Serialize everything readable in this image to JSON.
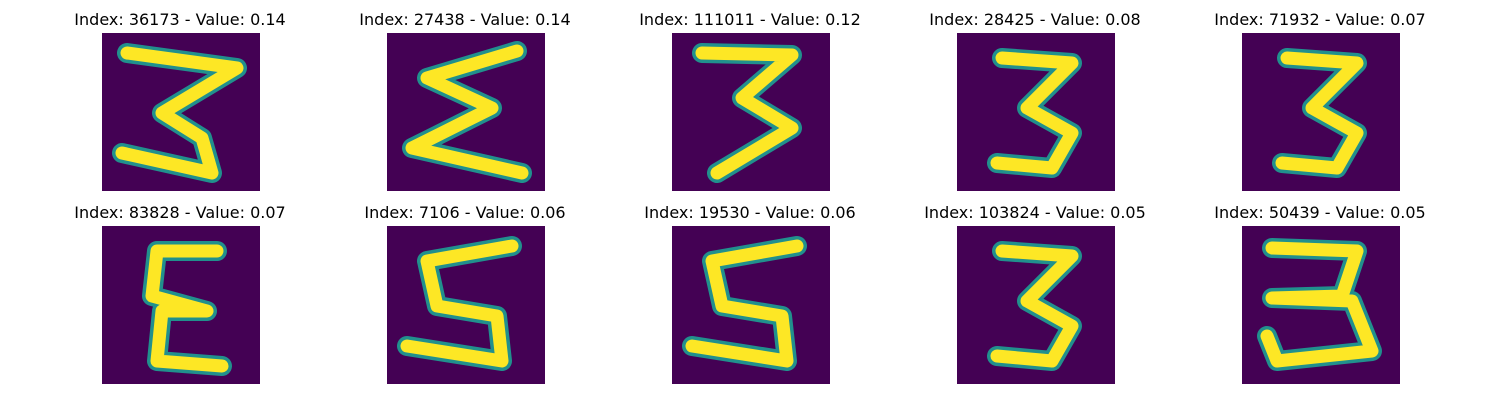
{
  "figure": {
    "background": "#ffffff",
    "colormap": "viridis",
    "colors": {
      "low": "#440154",
      "mid": "#21908d",
      "high": "#fde725"
    },
    "panels": [
      {
        "title": "Index: 36173 - Value: 0.14",
        "index": 36173,
        "value": 0.14,
        "shape": "E-mirror"
      },
      {
        "title": "Index: 27438 - Value: 0.14",
        "index": 27438,
        "value": 0.14,
        "shape": "sigma"
      },
      {
        "title": "Index: 111011 - Value: 0.12",
        "index": 111011,
        "value": 0.12,
        "shape": "three-wide"
      },
      {
        "title": "Index: 28425 - Value: 0.08",
        "index": 28425,
        "value": 0.08,
        "shape": "three"
      },
      {
        "title": "Index: 71932 - Value: 0.07",
        "index": 71932,
        "value": 0.07,
        "shape": "three"
      },
      {
        "title": "Index: 83828 - Value: 0.07",
        "index": 83828,
        "value": 0.07,
        "shape": "epsilon"
      },
      {
        "title": "Index: 7106 - Value: 0.06",
        "index": 7106,
        "value": 0.06,
        "shape": "five"
      },
      {
        "title": "Index: 19530 - Value: 0.06",
        "index": 19530,
        "value": 0.06,
        "shape": "five"
      },
      {
        "title": "Index: 103824 - Value: 0.05",
        "index": 103824,
        "value": 0.05,
        "shape": "three"
      },
      {
        "title": "Index: 50439 - Value: 0.05",
        "index": 50439,
        "value": 0.05,
        "shape": "three-open"
      }
    ]
  }
}
